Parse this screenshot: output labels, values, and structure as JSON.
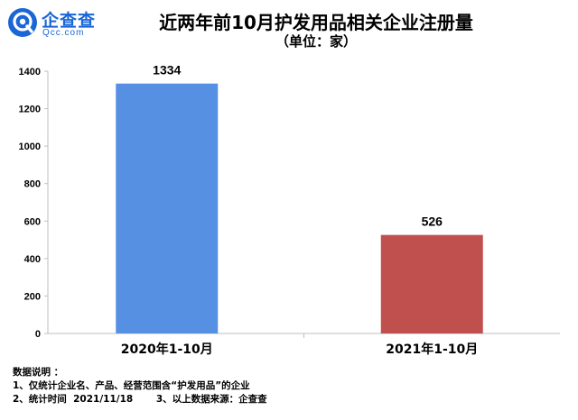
{
  "logo": {
    "name": "企查查",
    "domain": "Qcc.com",
    "icon": "qcc-logo-icon",
    "brand_color": "#1a66d6"
  },
  "chart_data": {
    "type": "bar",
    "title": "近两年前10月护发用品相关企业注册量",
    "subtitle": "（单位：家）",
    "categories": [
      "2020年1-10月",
      "2021年1-10月"
    ],
    "values": [
      1334,
      526
    ],
    "value_labels": [
      "1334",
      "526"
    ],
    "bar_colors": [
      "#5690e3",
      "#c0504d"
    ],
    "ylim": [
      0,
      1400
    ],
    "yticks": [
      0,
      200,
      400,
      600,
      800,
      1000,
      1200,
      1400
    ],
    "grid": false,
    "legend": "none"
  },
  "notes": {
    "heading": "数据说明 ：",
    "line1": "1、仅统计企业名、产品、经营范围含“护发用品”的企业",
    "line2": "2、统计时间  2021/11/18       3、以上数据来源：企查查"
  }
}
